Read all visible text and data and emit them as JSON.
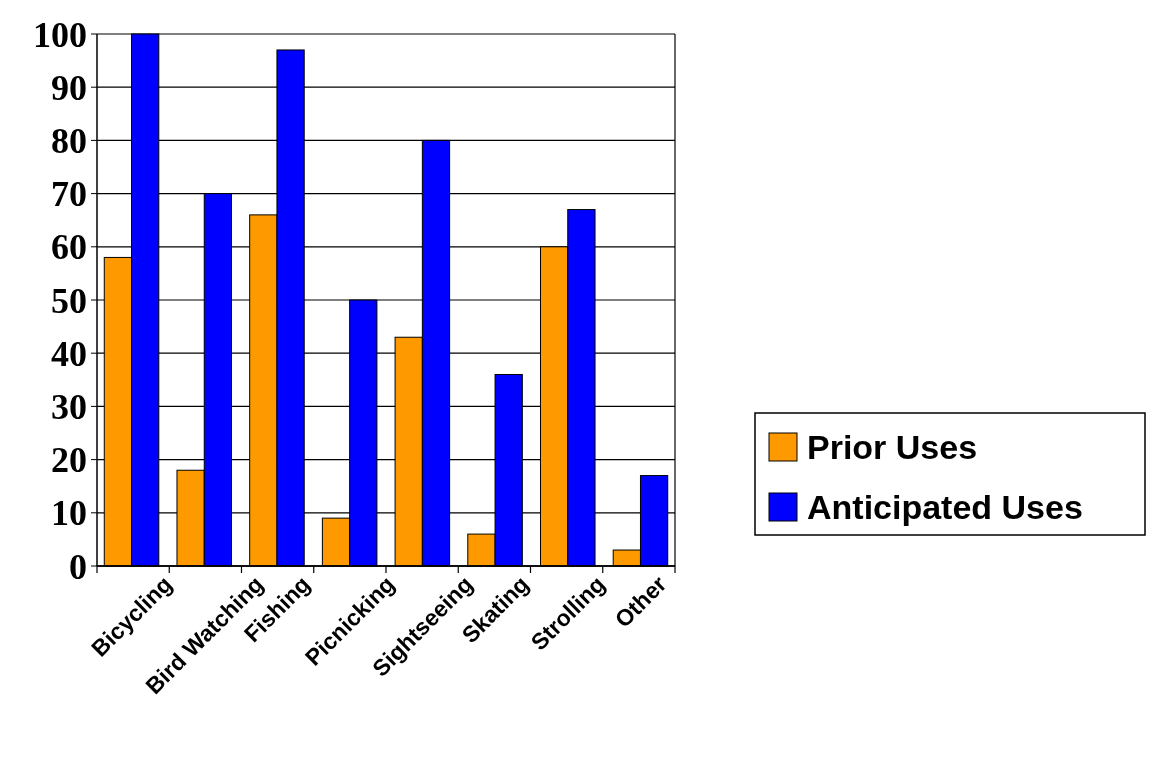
{
  "chart_data": {
    "type": "bar",
    "categories": [
      "Bicycling",
      "Bird Watching",
      "Fishing",
      "Picnicking",
      "Sightseeing",
      "Skating",
      "Strolling",
      "Other"
    ],
    "series": [
      {
        "name": "Prior Uses",
        "color": "#ff9900",
        "values": [
          58,
          18,
          66,
          9,
          43,
          6,
          60,
          3
        ]
      },
      {
        "name": "Anticipated Uses",
        "color": "#0000ff",
        "values": [
          100,
          70,
          97,
          50,
          80,
          36,
          67,
          17
        ]
      }
    ],
    "ylim": [
      0,
      100
    ],
    "yticks": [
      0,
      10,
      20,
      30,
      40,
      50,
      60,
      70,
      80,
      90,
      100
    ],
    "grid": "y",
    "legend": "right"
  }
}
